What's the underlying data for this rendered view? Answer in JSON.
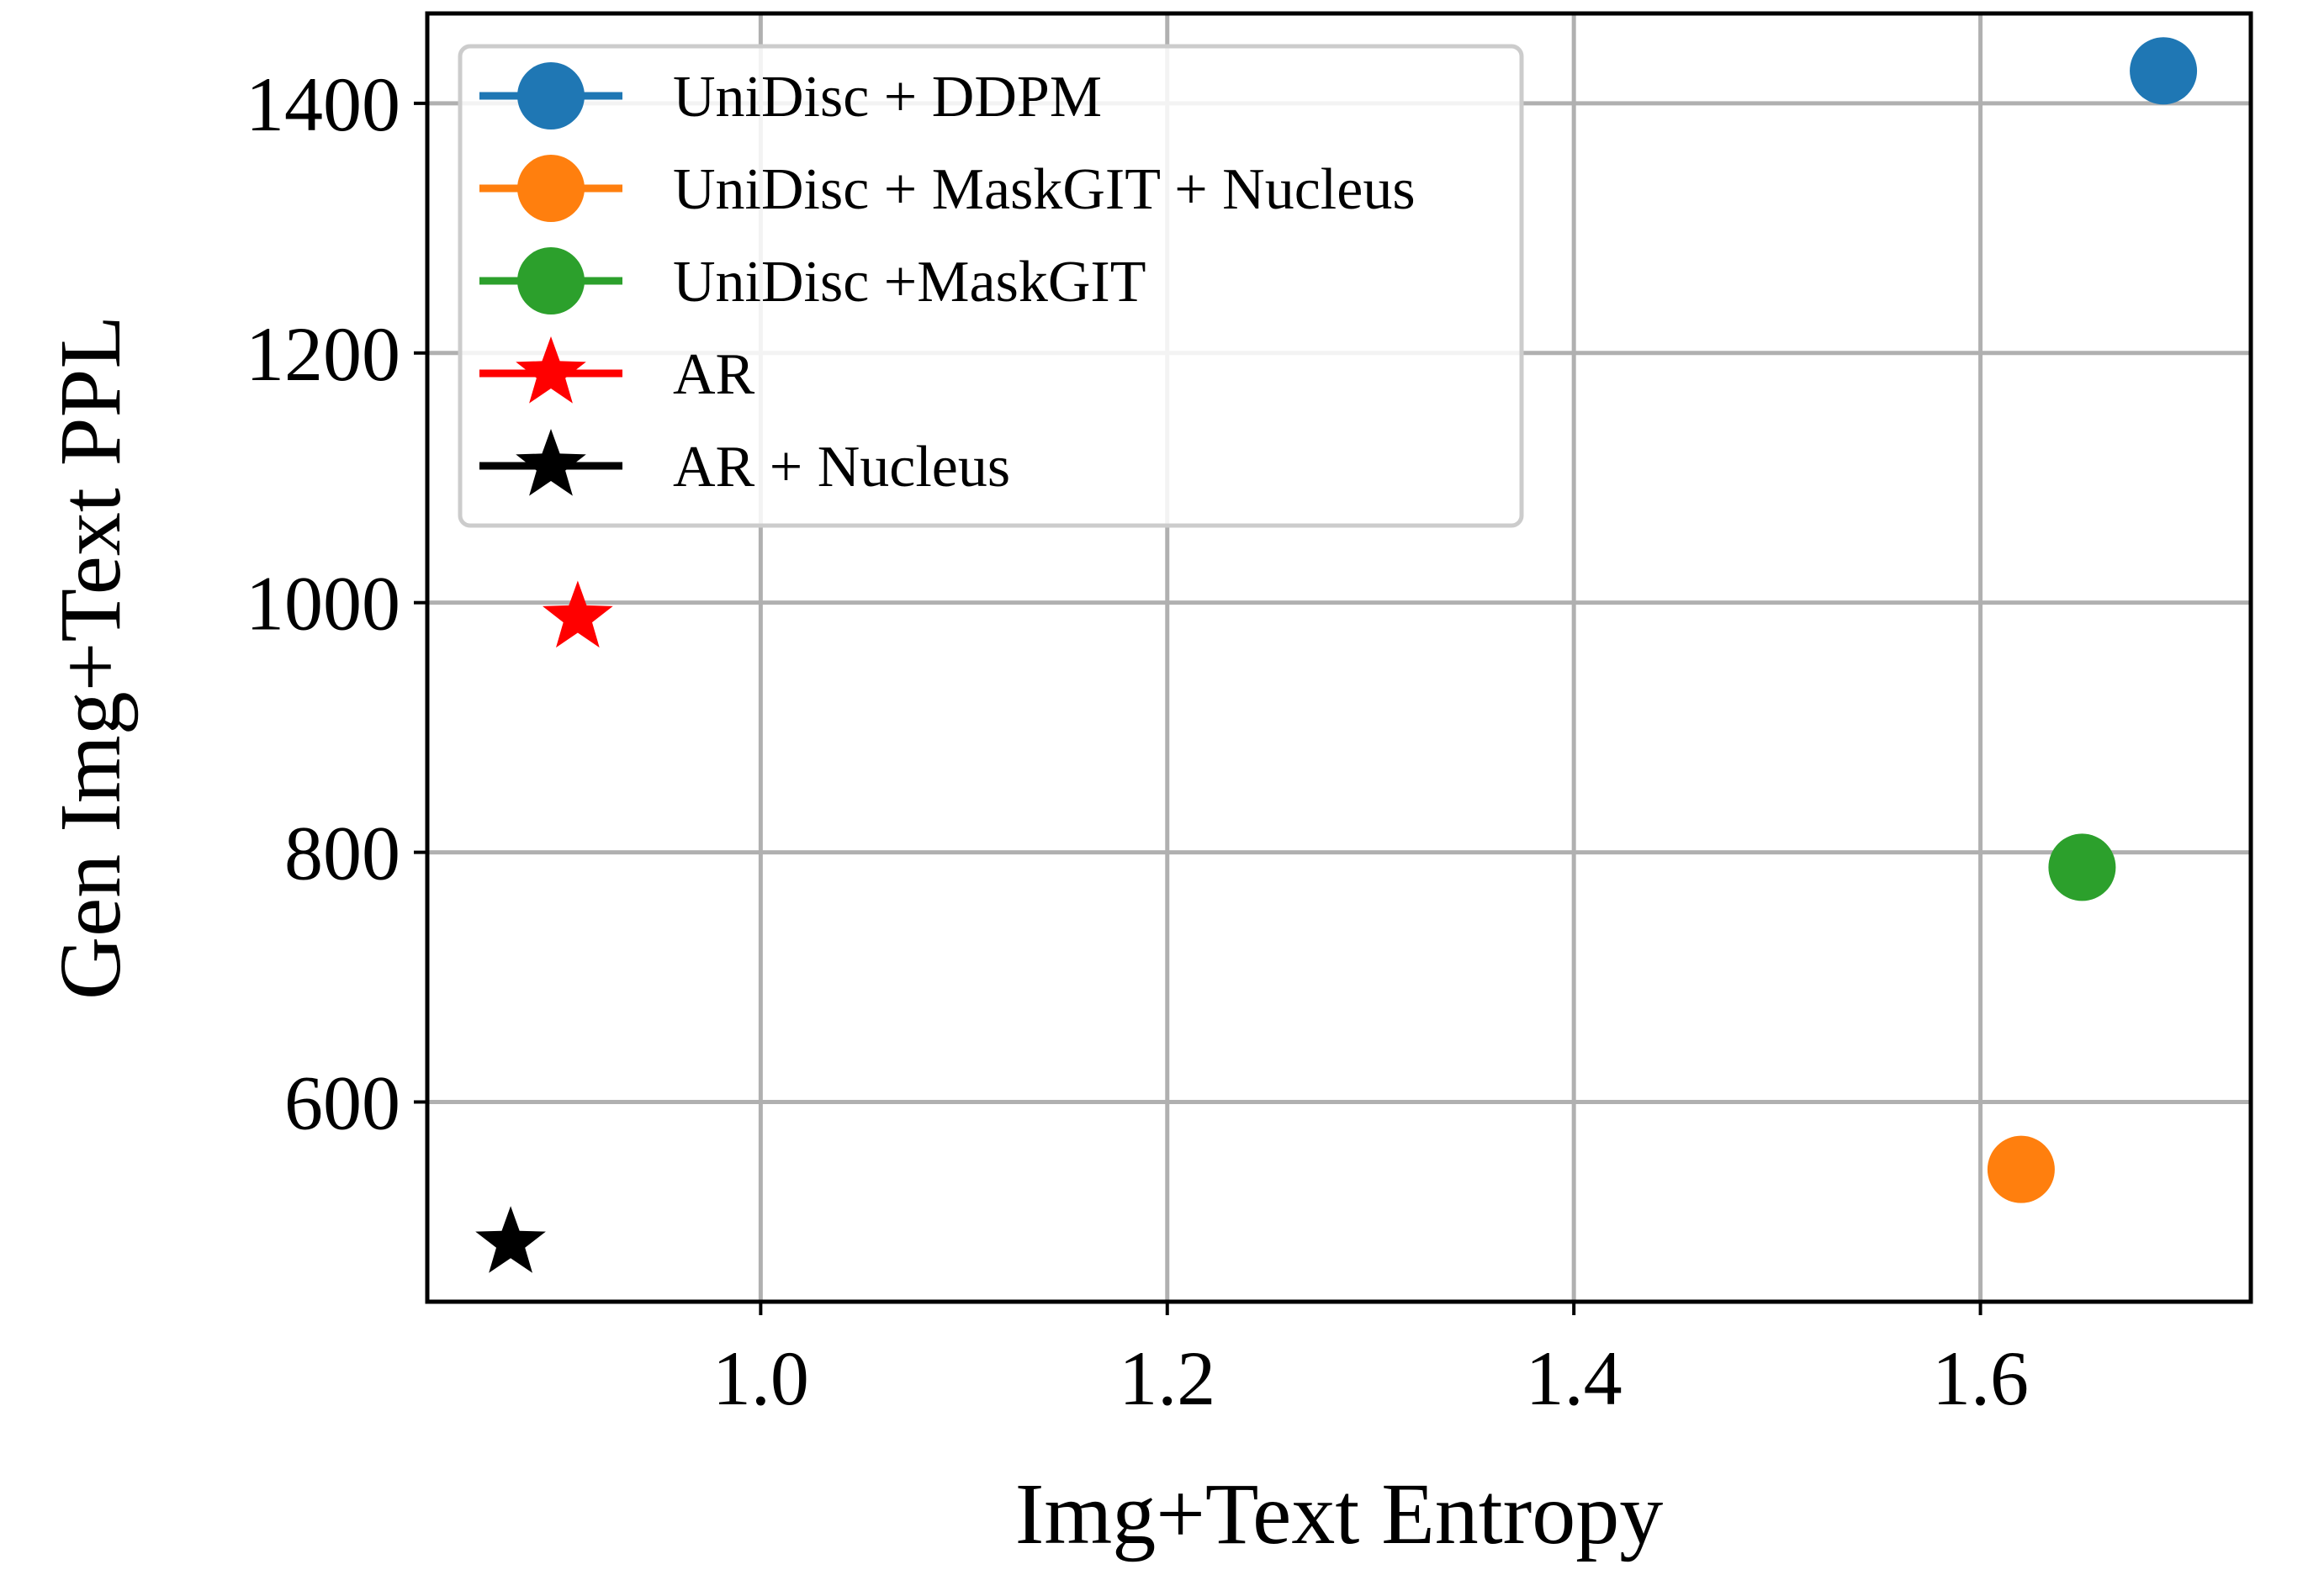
{
  "chart_data": {
    "type": "scatter",
    "xlabel": "Img+Text Entropy",
    "ylabel": "Gen Img+Text PPL",
    "xlim": [
      0.836,
      1.733
    ],
    "ylim": [
      440,
      1472
    ],
    "xticks": [
      1.0,
      1.2,
      1.4,
      1.6
    ],
    "xtick_labels": [
      "1.0",
      "1.2",
      "1.4",
      "1.6"
    ],
    "yticks": [
      600,
      800,
      1000,
      1200,
      1400
    ],
    "ytick_labels": [
      "600",
      "800",
      "1000",
      "1200",
      "1400"
    ],
    "grid": true,
    "legend_position": "top-left",
    "series": [
      {
        "name": "UniDisc + DDPM",
        "marker": "circle",
        "color": "#1f77b4",
        "x": 1.69,
        "y": 1426
      },
      {
        "name": "UniDisc + MaskGIT + Nucleus",
        "marker": "circle",
        "color": "#ff7f0e",
        "x": 1.62,
        "y": 546
      },
      {
        "name": "UniDisc +MaskGIT",
        "marker": "circle",
        "color": "#2ca02c",
        "x": 1.65,
        "y": 788
      },
      {
        "name": "AR",
        "marker": "star",
        "color": "#ff0000",
        "x": 0.91,
        "y": 988
      },
      {
        "name": "AR + Nucleus",
        "marker": "star",
        "color": "#000000",
        "x": 0.877,
        "y": 487
      }
    ]
  }
}
